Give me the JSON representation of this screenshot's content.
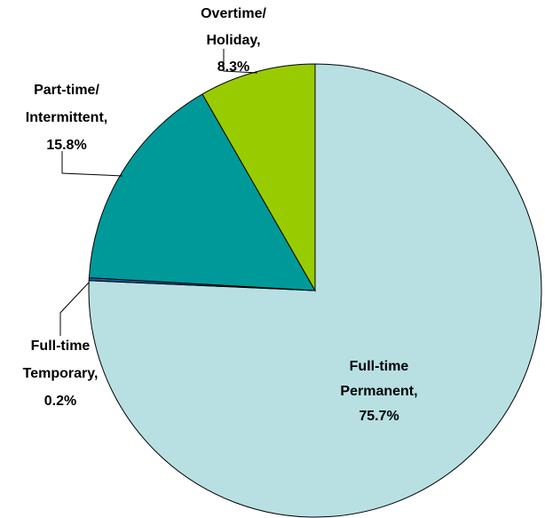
{
  "chart_data": {
    "type": "pie",
    "categories": [
      "Full-time Permanent",
      "Full-time Temporary",
      "Part-time/ Intermittent",
      "Overtime/ Holiday"
    ],
    "values": [
      75.7,
      0.2,
      15.8,
      8.3
    ],
    "value_labels": [
      "75.7%",
      "0.2%",
      "15.8%",
      "8.3%"
    ],
    "separator": ",",
    "colors": [
      "#b8e0e3",
      "#1f5fa8",
      "#009999",
      "#99cc00"
    ]
  }
}
